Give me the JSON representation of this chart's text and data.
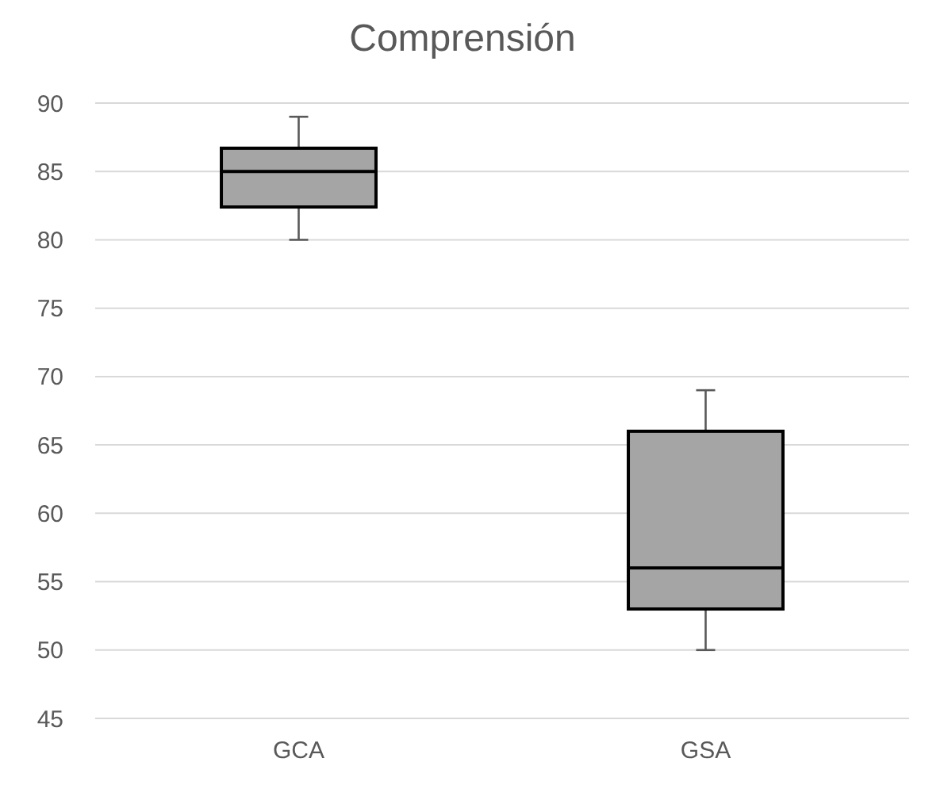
{
  "chart_data": {
    "type": "box",
    "title": "Comprensión",
    "categories": [
      "GCA",
      "GSA"
    ],
    "color": "#a5a5a5",
    "boxes": [
      {
        "low": 80,
        "q1": 82.4,
        "median": 85,
        "q3": 86.7,
        "high": 89
      },
      {
        "low": 50,
        "q1": 53,
        "median": 56,
        "q3": 66,
        "high": 69
      }
    ],
    "ylim": [
      45,
      90
    ],
    "yticks": [
      45,
      50,
      55,
      60,
      65,
      70,
      75,
      80,
      85,
      90
    ],
    "grid": "y"
  }
}
